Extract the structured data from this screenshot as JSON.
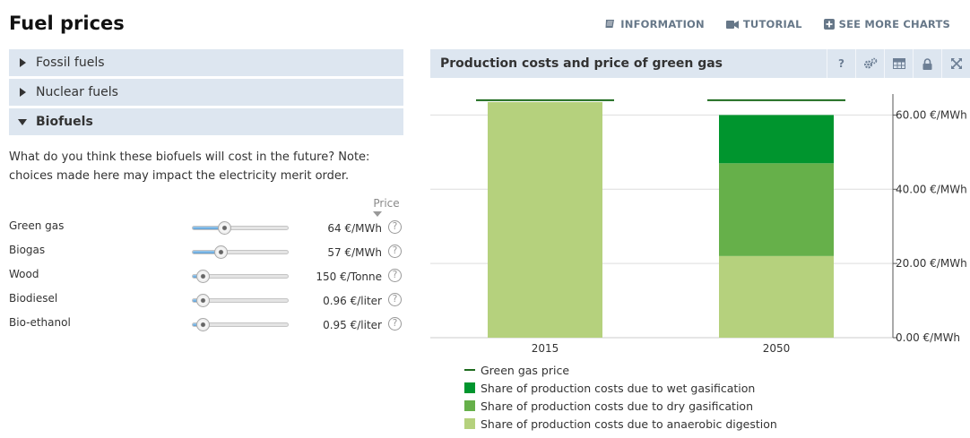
{
  "page": {
    "title": "Fuel prices"
  },
  "top_links": [
    {
      "label": "INFORMATION",
      "icon": "book-icon"
    },
    {
      "label": "TUTORIAL",
      "icon": "video-camera-icon"
    },
    {
      "label": "SEE MORE CHARTS",
      "icon": "plus-square-icon"
    }
  ],
  "accordion": [
    {
      "label": "Fossil fuels",
      "open": false
    },
    {
      "label": "Nuclear fuels",
      "open": false
    },
    {
      "label": "Biofuels",
      "open": true
    }
  ],
  "intro": "What do you think these biofuels will cost in the future? Note: choices made here may impact the electricity merit order.",
  "price_header": "Price",
  "fuels": [
    {
      "name": "Green gas",
      "value": "64 €/MWh",
      "level": 0.33
    },
    {
      "name": "Biogas",
      "value": "57 €/MWh",
      "level": 0.29
    },
    {
      "name": "Wood",
      "value": "150 €/Tonne",
      "level": 0.1
    },
    {
      "name": "Biodiesel",
      "value": "0.96 €/liter",
      "level": 0.1
    },
    {
      "name": "Bio-ethanol",
      "value": "0.95 €/liter",
      "level": 0.1
    }
  ],
  "chart_panel": {
    "title": "Production costs and price of green gas",
    "tools": [
      "help-icon",
      "settings-icon",
      "table-icon",
      "lock-icon",
      "expand-icon"
    ],
    "help_label": "?"
  },
  "colors": {
    "price_line": "#1e6b1e",
    "wet": "#00952e",
    "dry": "#66b04a",
    "anaerobic": "#b5d17d",
    "panel": "#dde6f0"
  },
  "chart_data": {
    "type": "bar",
    "stacked": true,
    "categories": [
      "2015",
      "2050"
    ],
    "series": [
      {
        "name": "Share of production costs due to anaerobic digestion",
        "values": [
          63.5,
          22
        ],
        "color": "#b5d17d"
      },
      {
        "name": "Share of production costs due to dry gasification",
        "values": [
          0,
          25
        ],
        "color": "#66b04a"
      },
      {
        "name": "Share of production costs due to wet gasification",
        "values": [
          0,
          13
        ],
        "color": "#00952e"
      }
    ],
    "line_series": {
      "name": "Green gas price",
      "values": [
        64,
        64
      ],
      "color": "#1e6b1e"
    },
    "ylim": [
      0,
      70
    ],
    "yticks": [
      0,
      20,
      40,
      60
    ],
    "ytick_labels": [
      "0.00 €/MWh",
      "20.00 €/MWh",
      "40.00 €/MWh",
      "60.00 €/MWh"
    ],
    "y_axis_position": "right",
    "grid": true,
    "legend_position": "bottom",
    "legend": [
      "Green gas price",
      "Share of production costs due to wet gasification",
      "Share of production costs due to dry gasification",
      "Share of production costs due to anaerobic digestion"
    ]
  }
}
